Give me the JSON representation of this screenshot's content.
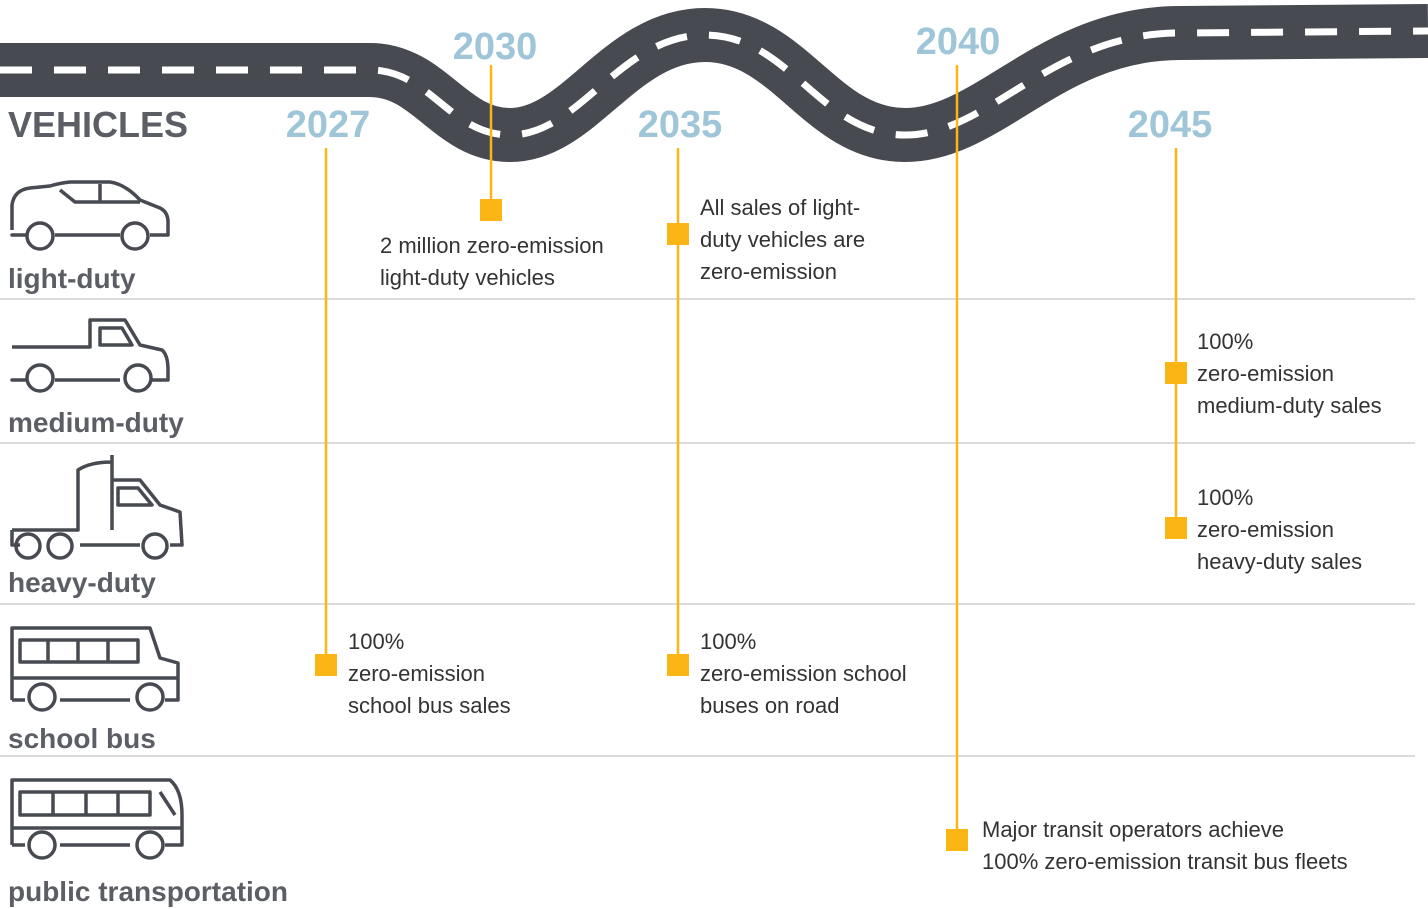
{
  "header": "VEHICLES",
  "years": [
    "2027",
    "2030",
    "2035",
    "2040",
    "2045"
  ],
  "rows": [
    "light-duty",
    "medium-duty",
    "heavy-duty",
    "school bus",
    "public transportation"
  ],
  "milestones": [
    {
      "lines": [
        "2 million zero-emission",
        "light-duty vehicles"
      ]
    },
    {
      "lines": [
        "All sales of light-",
        "duty vehicles are",
        "zero-emission"
      ]
    },
    {
      "lines": [
        "100%",
        "zero-emission",
        "medium-duty sales"
      ]
    },
    {
      "lines": [
        "100%",
        "zero-emission",
        "heavy-duty sales"
      ]
    },
    {
      "lines": [
        "100%",
        "zero-emission",
        "school bus sales"
      ]
    },
    {
      "lines": [
        "100%",
        "zero-emission school",
        "buses on road"
      ]
    },
    {
      "lines": [
        "Major transit operators achieve",
        "100% zero-emission transit bus fleets"
      ]
    }
  ]
}
